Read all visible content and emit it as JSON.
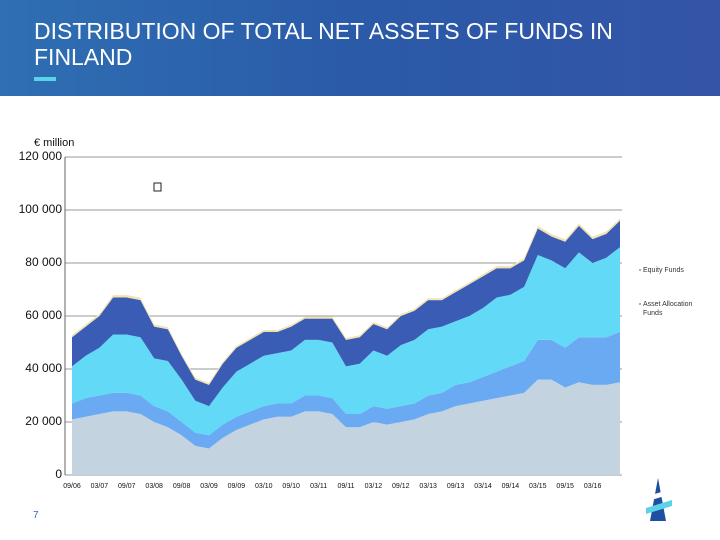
{
  "page_title": "DISTRIBUTION OF TOTAL NET ASSETS OF FUNDS IN FINLAND",
  "page_number": "7",
  "chart_data": {
    "type": "stacked_area",
    "ylabel": "€ million",
    "categories": [
      "09/06",
      null,
      "03/07",
      null,
      "09/07",
      null,
      "03/08",
      null,
      "09/08",
      null,
      "03/09",
      null,
      "09/09",
      null,
      "03/10",
      null,
      "09/10",
      null,
      "03/11",
      null,
      "09/11",
      null,
      "03/12",
      null,
      "09/12",
      null,
      "03/13",
      null,
      "09/13",
      null,
      "03/14",
      null,
      "09/14",
      null,
      "03/15",
      null,
      "09/15",
      null,
      "03/16",
      null,
      null
    ],
    "series": [
      {
        "color": "#c3d3df",
        "values": [
          21000,
          22000,
          23000,
          24000,
          24000,
          23000,
          20000,
          18000,
          15000,
          11000,
          10000,
          14000,
          17000,
          19000,
          21000,
          22000,
          22000,
          24000,
          24000,
          23000,
          18000,
          18000,
          20000,
          19000,
          20000,
          21000,
          23000,
          24000,
          26000,
          27000,
          28000,
          29000,
          30000,
          31000,
          36000,
          36000,
          33000,
          35000,
          34000,
          34000,
          35000
        ]
      },
      {
        "color": "#6aaaf2",
        "values": [
          6000,
          7000,
          7000,
          7000,
          7000,
          7000,
          6000,
          6000,
          5000,
          5000,
          5000,
          5000,
          5000,
          5000,
          5000,
          5000,
          5000,
          6000,
          6000,
          6000,
          5000,
          5000,
          6000,
          6000,
          6000,
          6000,
          7000,
          7000,
          8000,
          8000,
          9000,
          10000,
          11000,
          12000,
          15000,
          15000,
          15000,
          17000,
          18000,
          18000,
          19000
        ]
      },
      {
        "name": "Equity Funds",
        "color": "#62d9f6",
        "values": [
          14000,
          16000,
          18000,
          22000,
          22000,
          22000,
          18000,
          19000,
          16000,
          12000,
          11000,
          14000,
          17000,
          18000,
          19000,
          19000,
          20000,
          21000,
          21000,
          21000,
          18000,
          19000,
          21000,
          20000,
          23000,
          24000,
          25000,
          25000,
          24000,
          25000,
          26000,
          28000,
          27000,
          28000,
          32000,
          30000,
          30000,
          32000,
          28000,
          30000,
          32000
        ]
      },
      {
        "name": "Asset Allocation Funds",
        "color": "#3a5cb4",
        "values": [
          11000,
          11000,
          12000,
          14000,
          14000,
          14000,
          12000,
          12000,
          9000,
          8000,
          8000,
          9000,
          9000,
          9000,
          9000,
          8000,
          9000,
          8000,
          8000,
          9000,
          10000,
          10000,
          10000,
          10000,
          11000,
          11000,
          11000,
          10000,
          11000,
          12000,
          12000,
          11000,
          10000,
          10000,
          10000,
          9000,
          10000,
          10000,
          9000,
          9000,
          10000
        ]
      },
      {
        "color": "#f1e2b0",
        "values": [
          800,
          800,
          800,
          900,
          900,
          900,
          800,
          800,
          700,
          700,
          700,
          700,
          700,
          700,
          700,
          700,
          700,
          700,
          700,
          700,
          700,
          700,
          700,
          700,
          700,
          700,
          700,
          700,
          700,
          700,
          800,
          800,
          800,
          800,
          900,
          900,
          900,
          900,
          900,
          900,
          900
        ]
      }
    ],
    "ylim": [
      0,
      120000
    ],
    "yticks": [
      0,
      {
        "value": 20000,
        "label": "20 000"
      },
      {
        "value": 40000,
        "label": "40 000"
      },
      {
        "value": 60000,
        "label": "60 000"
      },
      {
        "value": 80000,
        "label": "80 000"
      },
      {
        "value": 100000,
        "label": "100 000"
      },
      {
        "value": 120000,
        "label": "120 000"
      }
    ],
    "grid": true,
    "legend": "right"
  }
}
